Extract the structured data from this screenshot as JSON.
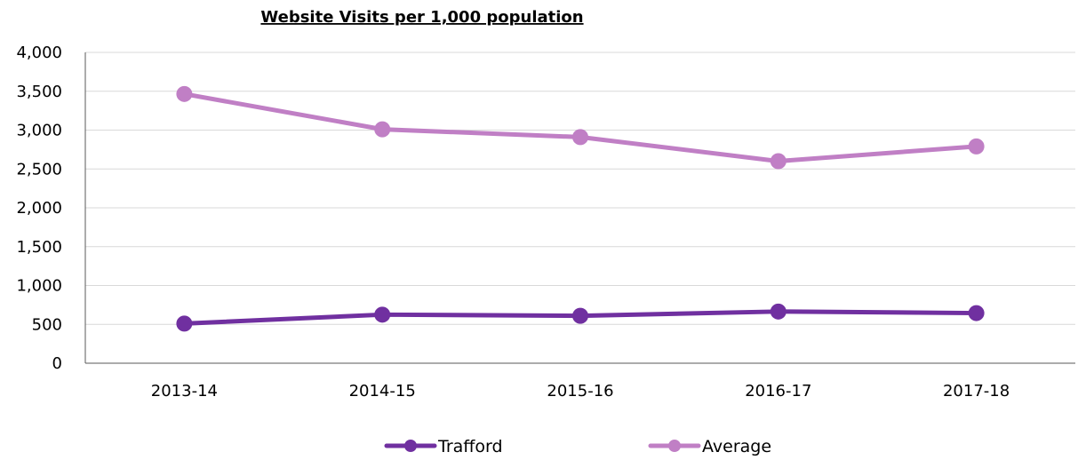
{
  "chart_data": {
    "type": "line",
    "title": "Website Visits per 1,000 population",
    "xlabel": "",
    "ylabel": "",
    "categories": [
      "2013-14",
      "2014-15",
      "2015-16",
      "2016-17",
      "2017-18"
    ],
    "series": [
      {
        "name": "Trafford",
        "color": "#7030A0",
        "values": [
          510,
          625,
          610,
          665,
          645
        ]
      },
      {
        "name": "Average",
        "color": "#C07FC5",
        "values": [
          3465,
          3010,
          2910,
          2600,
          2790
        ]
      }
    ],
    "ylim": [
      0,
      4000
    ],
    "yticks": [
      0,
      500,
      1000,
      1500,
      2000,
      2500,
      3000,
      3500,
      4000
    ],
    "ytick_labels": [
      "0",
      "500",
      "1,000",
      "1,500",
      "2,000",
      "2,500",
      "3,000",
      "3,500",
      "4,000"
    ],
    "grid": true,
    "legend_position": "bottom"
  }
}
